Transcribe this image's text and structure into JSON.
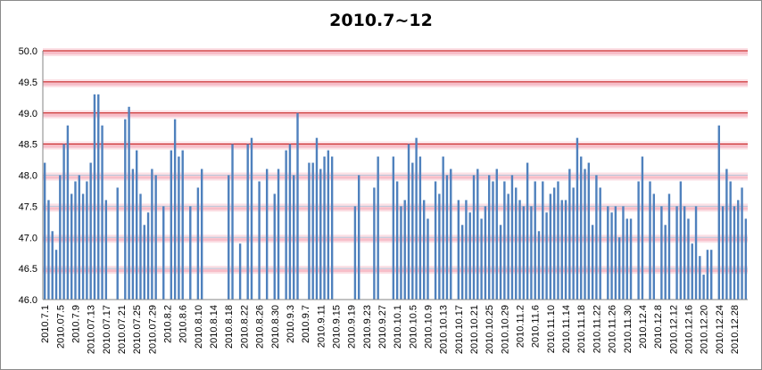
{
  "chart_data": {
    "type": "bar",
    "title": "2010.7~12",
    "xlabel": "",
    "ylabel": "",
    "ylim": [
      46.0,
      50.0
    ],
    "y_ticks": [
      "46.0",
      "46.5",
      "47.0",
      "47.5",
      "48.0",
      "48.5",
      "49.0",
      "49.5",
      "50.0"
    ],
    "grid": true,
    "legend": "none",
    "bar_color": "#4f81bd",
    "x_tick_labels": [
      "2010.7.1",
      "2010.07.5",
      "2010.7.9",
      "2010.07.13",
      "2010.07.17",
      "2010.07.21",
      "2010.07.25",
      "2010.07.29",
      "2010.8.2",
      "2010.8.6",
      "2010.8.10",
      "2010.8.14",
      "2010.8.18",
      "2010.8.22",
      "2010.8.26",
      "2010.8.30",
      "2010.9.3",
      "2010.9.7",
      "2010.9.11",
      "2010.9.15",
      "2010.9.19",
      "2010.9.23",
      "2010.9.27",
      "2010.10.1",
      "2010.10.5",
      "2010.10.9",
      "2010.10.13",
      "2010.10.17",
      "2010.10.21",
      "2010.10.25",
      "2010.10.29",
      "2010.11.2",
      "2010.11.6",
      "2010.11.10",
      "2010.11.14",
      "2010.11.18",
      "2010.11.22",
      "2010.11.26",
      "2010.11.30",
      "2010.12.4",
      "2010.12.8",
      "2010.12.12",
      "2010.12.16",
      "2010.12.20",
      "2010.12.24",
      "2010.12.28"
    ],
    "values": [
      48.2,
      47.6,
      47.1,
      46.8,
      48.0,
      48.5,
      48.8,
      47.7,
      47.9,
      48.0,
      47.7,
      47.9,
      48.2,
      49.3,
      49.3,
      48.8,
      47.6,
      null,
      null,
      47.8,
      null,
      48.9,
      49.1,
      48.1,
      48.4,
      47.7,
      47.2,
      47.4,
      48.1,
      48.0,
      null,
      47.5,
      null,
      48.4,
      48.9,
      48.3,
      48.4,
      null,
      47.5,
      null,
      47.8,
      48.1,
      null,
      null,
      null,
      null,
      null,
      null,
      48.0,
      48.5,
      null,
      46.9,
      null,
      48.5,
      48.6,
      null,
      47.9,
      null,
      48.1,
      null,
      47.7,
      48.1,
      null,
      48.4,
      48.5,
      48.0,
      49.0,
      null,
      null,
      48.2,
      48.2,
      48.6,
      48.1,
      48.3,
      48.4,
      48.3,
      null,
      null,
      null,
      null,
      null,
      47.5,
      48.0,
      null,
      null,
      null,
      47.8,
      48.3,
      null,
      null,
      null,
      48.3,
      47.9,
      47.5,
      47.6,
      48.5,
      48.2,
      48.6,
      48.3,
      47.6,
      47.3,
      null,
      47.9,
      47.7,
      48.3,
      48.0,
      48.1,
      null,
      47.6,
      47.2,
      47.6,
      47.4,
      48.0,
      48.1,
      47.3,
      47.5,
      48.0,
      47.9,
      48.1,
      47.2,
      47.9,
      47.7,
      48.0,
      47.8,
      47.6,
      47.5,
      48.2,
      47.5,
      47.9,
      47.1,
      47.9,
      47.4,
      47.7,
      47.8,
      47.9,
      47.6,
      47.6,
      48.1,
      47.8,
      48.6,
      48.3,
      48.1,
      48.2,
      47.2,
      48.0,
      47.8,
      null,
      47.5,
      47.4,
      47.5,
      47.0,
      47.5,
      47.3,
      47.3,
      null,
      47.9,
      48.3,
      null,
      47.9,
      47.7,
      null,
      47.5,
      47.2,
      47.7,
      null,
      47.5,
      47.9,
      47.5,
      47.3,
      46.9,
      47.5,
      46.7,
      46.4,
      46.8,
      46.8,
      null,
      48.8,
      47.5,
      48.1,
      47.9,
      47.5,
      47.6,
      47.8,
      47.3
    ]
  }
}
